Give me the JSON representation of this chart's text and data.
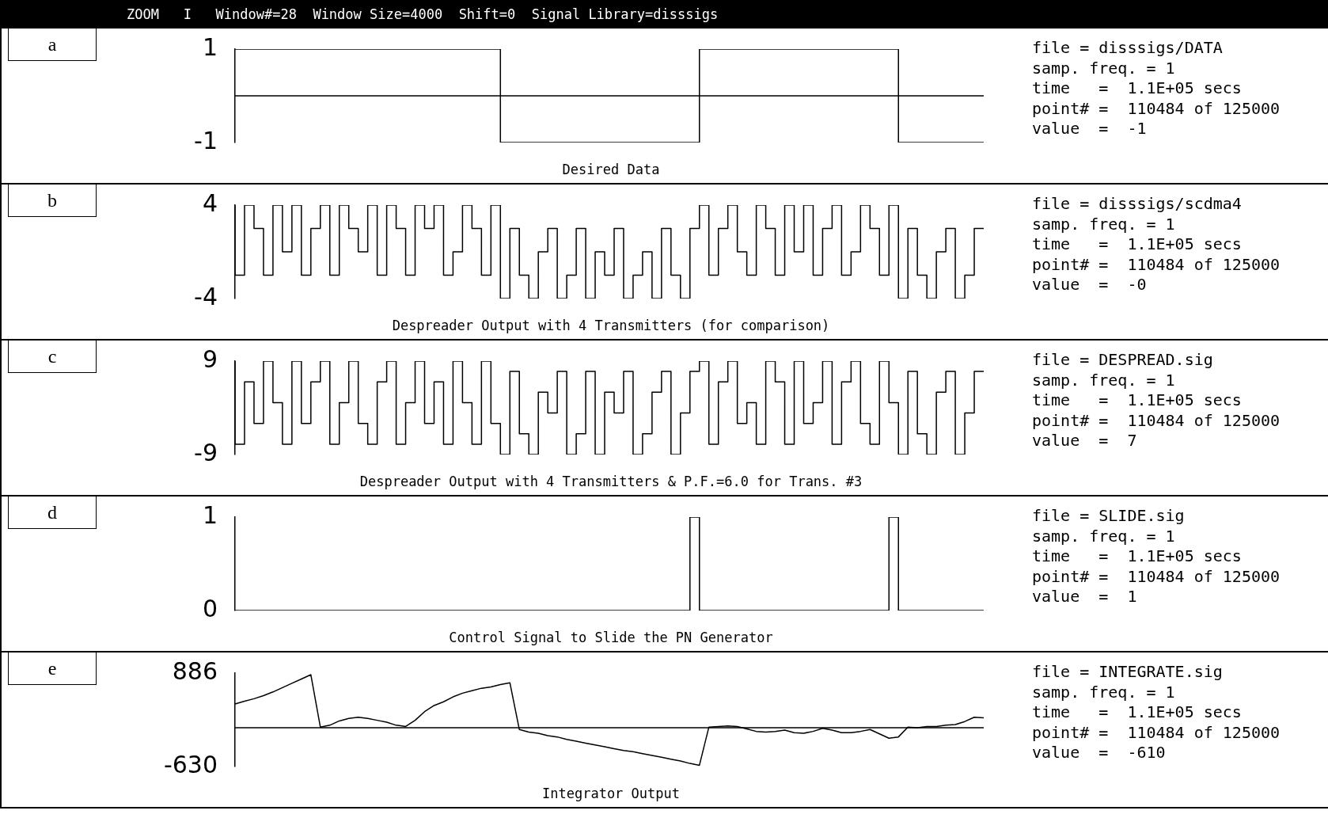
{
  "chart_data": [
    {
      "type": "step",
      "subtitle": "ZOOM   I   Window#=28  Window Size=4000  Shift=0  Signal Library=disssigs",
      "title": "Desired Data",
      "color": "#000000",
      "tick_labels": "y",
      "grid": false,
      "ylim": [
        -1,
        1
      ],
      "yticks": [
        -1,
        1
      ],
      "ref_lines": [
        {
          "axis": "y",
          "value": 0
        }
      ],
      "annotations": [
        "a",
        "file = disssigs/DATA",
        "samp. freq. = 1",
        "time   =  1.1E+05 secs",
        "point# =  110484 of 125000",
        "value  =  -1"
      ],
      "categories": [
        null,
        null,
        null,
        null,
        null,
        null,
        null,
        null,
        null,
        null,
        null,
        null,
        null,
        null,
        null,
        null,
        null,
        null,
        null,
        null,
        null,
        null,
        null,
        null,
        null,
        null,
        null,
        null,
        null,
        null,
        null,
        null,
        null,
        null,
        null,
        null,
        null,
        null,
        null,
        null,
        null,
        null,
        null,
        null,
        null,
        null,
        null,
        null,
        null,
        null,
        null,
        null,
        null,
        null,
        null,
        null,
        null,
        null,
        null,
        null,
        null,
        null,
        null,
        null,
        null,
        null,
        null,
        null,
        null,
        null,
        null,
        null,
        null,
        null,
        null,
        null,
        null,
        null,
        null,
        null
      ],
      "values": [
        1,
        1,
        1,
        1,
        1,
        1,
        1,
        1,
        1,
        1,
        1,
        1,
        1,
        1,
        1,
        1,
        1,
        1,
        1,
        1,
        1,
        1,
        1,
        1,
        1,
        1,
        1,
        1,
        1,
        -1,
        -1,
        -1,
        -1,
        -1,
        -1,
        -1,
        -1,
        -1,
        -1,
        -1,
        -1,
        -1,
        -1,
        -1,
        -1,
        -1,
        -1,
        -1,
        -1,
        -1,
        1,
        1,
        1,
        1,
        1,
        1,
        1,
        1,
        1,
        1,
        1,
        1,
        1,
        1,
        1,
        1,
        1,
        1,
        1,
        1,
        1,
        -1,
        -1,
        -1,
        -1,
        -1,
        -1,
        -1,
        -1,
        -1
      ]
    },
    {
      "type": "step",
      "title": "Despreader Output with 4 Transmitters (for comparison)",
      "color": "#000000",
      "tick_labels": "y",
      "grid": false,
      "ylim": [
        -4,
        4
      ],
      "yticks": [
        -4,
        4
      ],
      "annotations": [
        "b",
        "file = disssigs/scdma4",
        "samp. freq. = 1",
        "time   =  1.1E+05 secs",
        "point# =  110484 of 125000",
        "value  =  -0"
      ],
      "categories": [
        null,
        null,
        null,
        null,
        null,
        null,
        null,
        null,
        null,
        null,
        null,
        null,
        null,
        null,
        null,
        null,
        null,
        null,
        null,
        null,
        null,
        null,
        null,
        null,
        null,
        null,
        null,
        null,
        null,
        null,
        null,
        null,
        null,
        null,
        null,
        null,
        null,
        null,
        null,
        null,
        null,
        null,
        null,
        null,
        null,
        null,
        null,
        null,
        null,
        null,
        null,
        null,
        null,
        null,
        null,
        null,
        null,
        null,
        null,
        null,
        null,
        null,
        null,
        null,
        null,
        null,
        null,
        null,
        null,
        null,
        null,
        null,
        null,
        null,
        null,
        null,
        null,
        null,
        null,
        null
      ],
      "values": [
        4,
        -2,
        4,
        2,
        -2,
        4,
        0,
        4,
        -2,
        2,
        4,
        -2,
        4,
        2,
        0,
        4,
        -2,
        4,
        2,
        -2,
        4,
        2,
        4,
        -2,
        0,
        4,
        2,
        -2,
        4,
        -4,
        2,
        -2,
        -4,
        0,
        2,
        -4,
        -2,
        2,
        -4,
        0,
        -2,
        2,
        -4,
        -2,
        0,
        -4,
        2,
        -2,
        -4,
        2,
        4,
        -2,
        2,
        4,
        0,
        -2,
        4,
        2,
        -2,
        4,
        0,
        4,
        -2,
        2,
        4,
        -2,
        0,
        4,
        2,
        -2,
        4,
        -4,
        2,
        -2,
        -4,
        0,
        2,
        -4,
        -2,
        2
      ]
    },
    {
      "type": "step",
      "title": "Despreader Output with 4 Transmitters & P.F.=6.0 for Trans. #3",
      "color": "#000000",
      "tick_labels": "y",
      "grid": false,
      "ylim": [
        -9,
        9
      ],
      "yticks": [
        -9,
        9
      ],
      "annotations": [
        "c",
        "file = DESPREAD.sig",
        "samp. freq. = 1",
        "time   =  1.1E+05 secs",
        "point# =  110484 of 125000",
        "value  =  7"
      ],
      "categories": [
        null,
        null,
        null,
        null,
        null,
        null,
        null,
        null,
        null,
        null,
        null,
        null,
        null,
        null,
        null,
        null,
        null,
        null,
        null,
        null,
        null,
        null,
        null,
        null,
        null,
        null,
        null,
        null,
        null,
        null,
        null,
        null,
        null,
        null,
        null,
        null,
        null,
        null,
        null,
        null,
        null,
        null,
        null,
        null,
        null,
        null,
        null,
        null,
        null,
        null,
        null,
        null,
        null,
        null,
        null,
        null,
        null,
        null,
        null,
        null,
        null,
        null,
        null,
        null,
        null,
        null,
        null,
        null,
        null,
        null,
        null,
        null,
        null,
        null,
        null,
        null,
        null,
        null,
        null,
        null
      ],
      "values": [
        9,
        -7,
        5,
        -3,
        9,
        1,
        -7,
        9,
        -3,
        5,
        9,
        -7,
        1,
        9,
        -3,
        -7,
        5,
        9,
        -7,
        1,
        9,
        -3,
        5,
        -7,
        9,
        1,
        -7,
        9,
        -3,
        -9,
        7,
        -5,
        -9,
        3,
        -1,
        7,
        -9,
        -5,
        7,
        -9,
        3,
        -1,
        7,
        -9,
        -5,
        3,
        7,
        -9,
        -1,
        7,
        9,
        -7,
        5,
        9,
        -3,
        1,
        -7,
        9,
        5,
        -7,
        9,
        -3,
        1,
        9,
        -7,
        5,
        9,
        -3,
        -7,
        9,
        1,
        -9,
        7,
        -5,
        -9,
        3,
        7,
        -9,
        -1,
        7
      ]
    },
    {
      "type": "step",
      "title": "Control Signal to Slide the PN Generator",
      "color": "#000000",
      "tick_labels": "y",
      "grid": false,
      "ylim": [
        0,
        1
      ],
      "yticks": [
        0,
        1
      ],
      "annotations": [
        "d",
        "file = SLIDE.sig",
        "samp. freq. = 1",
        "time   =  1.1E+05 secs",
        "point# =  110484 of 125000",
        "value  =  1"
      ],
      "categories": [
        null,
        null,
        null,
        null,
        null,
        null,
        null,
        null,
        null,
        null,
        null,
        null,
        null,
        null,
        null,
        null,
        null,
        null,
        null,
        null,
        null,
        null,
        null,
        null,
        null,
        null,
        null,
        null,
        null,
        null,
        null,
        null,
        null,
        null,
        null,
        null,
        null,
        null,
        null,
        null,
        null,
        null,
        null,
        null,
        null,
        null,
        null,
        null,
        null,
        null,
        null,
        null,
        null,
        null,
        null,
        null,
        null,
        null,
        null,
        null,
        null,
        null,
        null,
        null,
        null,
        null,
        null,
        null,
        null,
        null,
        null,
        null,
        null,
        null,
        null,
        null,
        null,
        null,
        null,
        null
      ],
      "values": [
        0,
        0,
        0,
        0,
        0,
        0,
        0,
        0,
        0,
        0,
        0,
        0,
        0,
        0,
        0,
        0,
        0,
        0,
        0,
        0,
        0,
        0,
        0,
        0,
        0,
        0,
        0,
        0,
        0,
        0,
        0,
        0,
        0,
        0,
        0,
        0,
        0,
        0,
        0,
        0,
        0,
        0,
        0,
        0,
        0,
        0,
        0,
        0,
        0,
        1,
        0,
        0,
        0,
        0,
        0,
        0,
        0,
        0,
        0,
        0,
        0,
        0,
        0,
        0,
        0,
        0,
        0,
        0,
        0,
        0,
        1,
        0,
        0,
        0,
        0,
        0,
        0,
        0,
        0,
        0
      ]
    },
    {
      "type": "line",
      "title": "Integrator Output",
      "color": "#000000",
      "tick_labels": "y",
      "grid": false,
      "ylim": [
        -630,
        886
      ],
      "yticks": [
        -630,
        886
      ],
      "ref_lines": [
        {
          "axis": "y",
          "value": 0
        }
      ],
      "annotations": [
        "e",
        "file = INTEGRATE.sig",
        "samp. freq. = 1",
        "time   =  1.1E+05 secs",
        "point# =  110484 of 125000",
        "value  =  -610"
      ],
      "categories": [
        null,
        null,
        null,
        null,
        null,
        null,
        null,
        null,
        null,
        null,
        null,
        null,
        null,
        null,
        null,
        null,
        null,
        null,
        null,
        null,
        null,
        null,
        null,
        null,
        null,
        null,
        null,
        null,
        null,
        null,
        null,
        null,
        null,
        null,
        null,
        null,
        null,
        null,
        null,
        null,
        null,
        null,
        null,
        null,
        null,
        null,
        null,
        null,
        null,
        null,
        null,
        null,
        null,
        null,
        null,
        null,
        null,
        null,
        null,
        null,
        null,
        null,
        null,
        null,
        null,
        null,
        null,
        null,
        null,
        null,
        null,
        null,
        null,
        null,
        null,
        null,
        null,
        null,
        null,
        null
      ],
      "values": [
        385,
        430,
        470,
        520,
        580,
        650,
        720,
        790,
        860,
        10,
        40,
        110,
        150,
        170,
        150,
        120,
        90,
        40,
        20,
        120,
        260,
        360,
        420,
        500,
        560,
        600,
        640,
        660,
        700,
        730,
        -30,
        -70,
        -90,
        -130,
        -150,
        -190,
        -220,
        -250,
        -280,
        -310,
        -340,
        -370,
        -390,
        -420,
        -450,
        -480,
        -510,
        -540,
        -580,
        -610,
        10,
        20,
        30,
        20,
        -20,
        -60,
        -70,
        -60,
        -40,
        -80,
        -90,
        -60,
        -10,
        -40,
        -80,
        -80,
        -60,
        -30,
        -100,
        -170,
        -150,
        10,
        0,
        20,
        20,
        40,
        50,
        100,
        170,
        160
      ]
    }
  ]
}
